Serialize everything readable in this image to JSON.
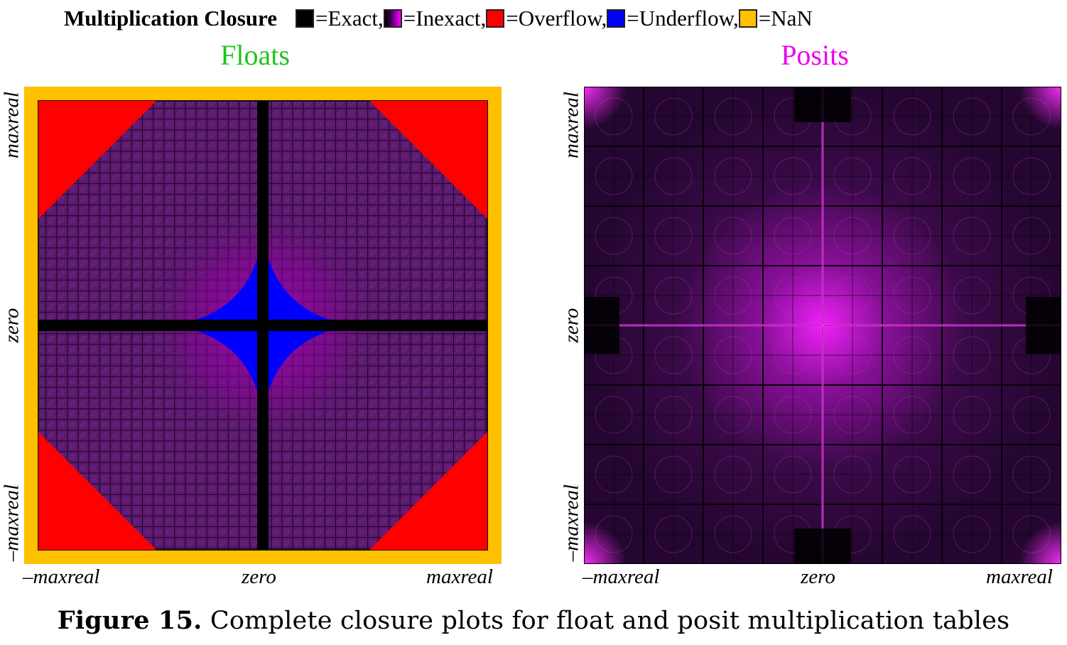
{
  "legend": {
    "title": "Multiplication Closure",
    "items": [
      {
        "label": "=Exact,",
        "color": "#000000"
      },
      {
        "label": "=Inexact,",
        "color": "gradient-black-magenta"
      },
      {
        "label": "=Overflow,",
        "color": "#ff0000"
      },
      {
        "label": "=Underflow,",
        "color": "#0000ff"
      },
      {
        "label": "=NaN",
        "color": "#ffc000"
      }
    ]
  },
  "chart_data": [
    {
      "type": "heatmap",
      "title": "Floats",
      "title_color": "#1fc41f",
      "x_tick_labels": [
        "–maxreal",
        "zero",
        "maxreal"
      ],
      "y_tick_labels": [
        "–maxreal",
        "zero",
        "maxreal"
      ],
      "categories": [
        "Exact",
        "Inexact",
        "Overflow",
        "Underflow",
        "NaN"
      ],
      "category_colors": {
        "Exact": "#000000",
        "Inexact": "#5a1a6e",
        "Overflow": "#ff0000",
        "Underflow": "#0000ff",
        "NaN": "#ffc000"
      },
      "regions": [
        {
          "category": "NaN",
          "where": "outer border (operands NaN / infinities)"
        },
        {
          "category": "Overflow",
          "where": "four corners (both operands large in magnitude)"
        },
        {
          "category": "Underflow",
          "where": "star-shaped area near the origin (both operands small)"
        },
        {
          "category": "Exact",
          "where": "zero row and zero column"
        },
        {
          "category": "Inexact",
          "where": "remaining grid"
        }
      ]
    },
    {
      "type": "heatmap",
      "title": "Posits",
      "title_color": "#ee00ee",
      "x_tick_labels": [
        "–maxreal",
        "zero",
        "maxreal"
      ],
      "y_tick_labels": [
        "–maxreal",
        "zero",
        "maxreal"
      ],
      "categories": [
        "Exact",
        "Inexact"
      ],
      "category_colors": {
        "Exact": "#000000",
        "Inexact": "#c000c8"
      },
      "regions": [
        {
          "category": "Exact",
          "where": "clusters near top/bottom center and left/right middle"
        },
        {
          "category": "Inexact",
          "where": "entire remaining table, brightest near axes and corners"
        }
      ]
    }
  ],
  "caption": {
    "label": "Figure 15.",
    "text": " Complete closure plots for float and posit multiplication tables"
  }
}
